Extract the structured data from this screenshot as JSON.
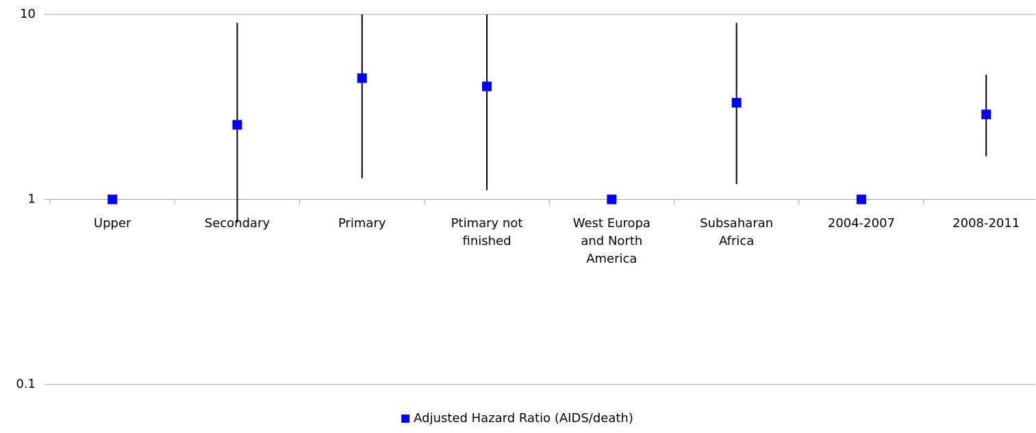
{
  "chart_data": {
    "type": "errorbar",
    "categories": [
      "Upper",
      "Secondary",
      "Primary",
      "Ptimary not finished",
      "West Europa and North America",
      "Subsaharan Africa",
      "2004-2007",
      "2008-2011"
    ],
    "series": [
      {
        "name": "Adjusted Hazard Ratio (AIDS/death)",
        "color": "#0000ff",
        "values": [
          1,
          2.53,
          4.52,
          4.08,
          1,
          3.33,
          1,
          2.88
        ],
        "ci_lower": [
          null,
          0.75,
          1.3,
          1.12,
          null,
          1.21,
          null,
          1.71
        ],
        "ci_upper": [
          null,
          9.0,
          10,
          10,
          null,
          9.0,
          null,
          4.72
        ]
      }
    ],
    "ylim": [
      0.1,
      10
    ],
    "yticks": [
      0.1,
      1,
      10
    ],
    "log_y": true,
    "grid": true,
    "legend": "bottom"
  }
}
